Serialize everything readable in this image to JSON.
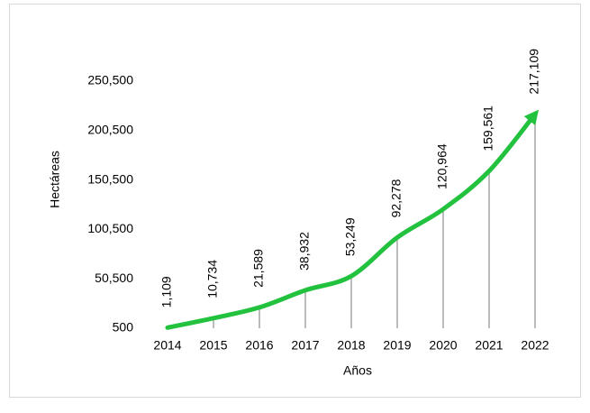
{
  "chart_data": {
    "type": "line",
    "x_label": "Años",
    "y_label": "Hectáreas",
    "categories": [
      "2014",
      "2015",
      "2016",
      "2017",
      "2018",
      "2019",
      "2020",
      "2021",
      "2022"
    ],
    "values": [
      1109,
      10734,
      21589,
      38932,
      53249,
      92278,
      120964,
      159561,
      217109
    ],
    "value_labels": [
      "1,109",
      "10,734",
      "21,589",
      "38,932",
      "53,249",
      "92,278",
      "120,964",
      "159,561",
      "217,109"
    ],
    "color": "#22c13e",
    "ylim": [
      500,
      250500
    ],
    "yticks": [
      {
        "value": 500,
        "label": "500"
      },
      {
        "value": 50500,
        "label": "50,500"
      },
      {
        "value": 100500,
        "label": "100,500"
      },
      {
        "value": 150500,
        "label": "150,500"
      },
      {
        "value": 200500,
        "label": "200,500"
      },
      {
        "value": 250500,
        "label": "250,500"
      }
    ]
  }
}
